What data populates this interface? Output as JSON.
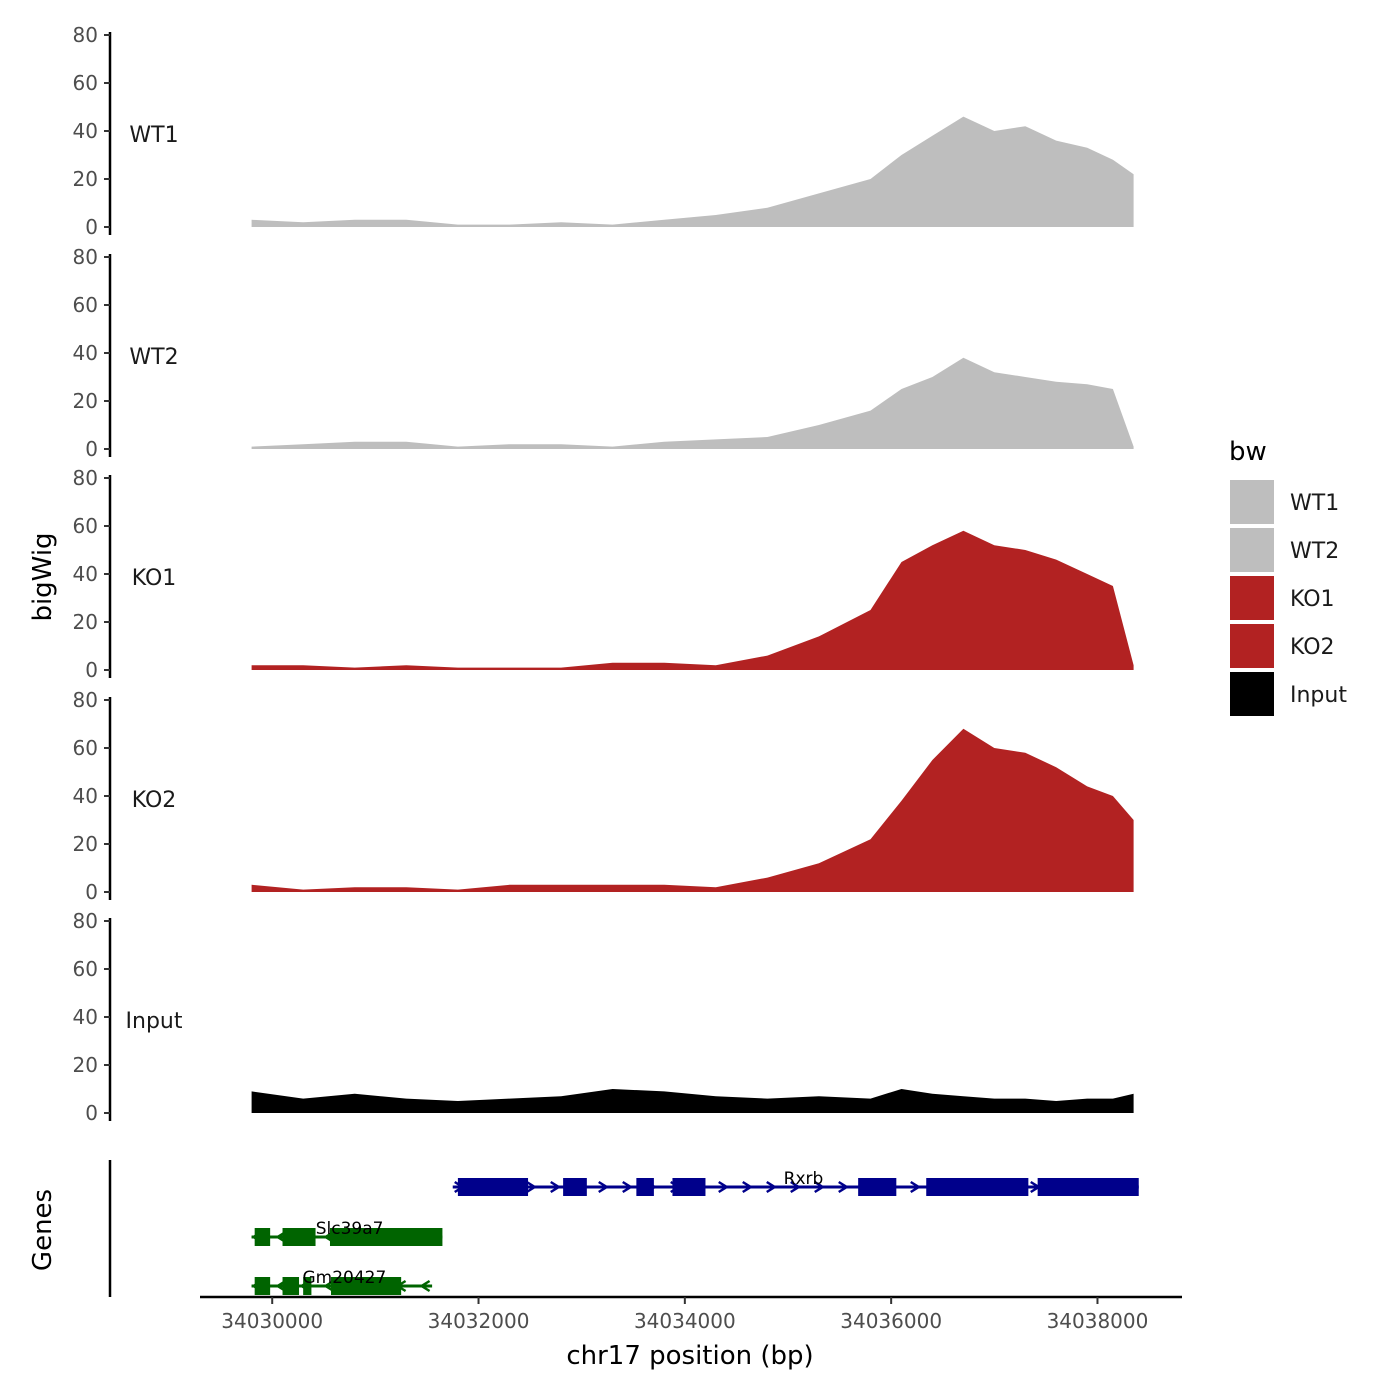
{
  "chart_data": {
    "type": "area",
    "region_chrom": "chr17",
    "xlim": [
      34029300,
      34038800
    ],
    "x_ticks": [
      34030000,
      34032000,
      34034000,
      34036000,
      34038000
    ],
    "x_tick_labels": [
      "34030000",
      "34032000",
      "34034000",
      "34036000",
      "34038000"
    ],
    "xlabel": "chr17 position (bp)",
    "ylabel": "bigWig",
    "ylim": [
      0,
      80
    ],
    "y_ticks": [
      0,
      20,
      40,
      60,
      80
    ],
    "y_tick_labels": [
      "0",
      "20",
      "40",
      "60",
      "80"
    ],
    "genes_panel_label": "Genes",
    "legend": {
      "title": "bw",
      "placement": "right",
      "entries": [
        {
          "label": "WT1",
          "color": "#bebebe"
        },
        {
          "label": "WT2",
          "color": "#bebebe"
        },
        {
          "label": "KO1",
          "color": "#b22222"
        },
        {
          "label": "KO2",
          "color": "#b22222"
        },
        {
          "label": "Input",
          "color": "#000000"
        }
      ]
    },
    "x": [
      34029800,
      34030300,
      34030800,
      34031300,
      34031800,
      34032300,
      34032800,
      34033300,
      34033800,
      34034300,
      34034800,
      34035300,
      34035800,
      34036100,
      34036400,
      34036700,
      34037000,
      34037300,
      34037600,
      34037900,
      34038150,
      34038350
    ],
    "series": [
      {
        "name": "WT1",
        "color": "#bebebe",
        "values": [
          3,
          2,
          3,
          3,
          1,
          1,
          2,
          1,
          3,
          5,
          8,
          14,
          20,
          30,
          38,
          46,
          40,
          42,
          36,
          33,
          28,
          22
        ]
      },
      {
        "name": "WT2",
        "color": "#bebebe",
        "values": [
          1,
          2,
          3,
          3,
          1,
          2,
          2,
          1,
          3,
          4,
          5,
          10,
          16,
          25,
          30,
          38,
          32,
          30,
          28,
          27,
          25,
          1
        ]
      },
      {
        "name": "KO1",
        "color": "#b22222",
        "values": [
          2,
          2,
          1,
          2,
          1,
          1,
          1,
          3,
          3,
          2,
          6,
          14,
          25,
          45,
          52,
          58,
          52,
          50,
          46,
          40,
          35,
          2
        ]
      },
      {
        "name": "KO2",
        "color": "#b22222",
        "values": [
          3,
          1,
          2,
          2,
          1,
          3,
          3,
          3,
          3,
          2,
          6,
          12,
          22,
          38,
          55,
          68,
          60,
          58,
          52,
          44,
          40,
          30
        ]
      },
      {
        "name": "Input",
        "color": "#000000",
        "values": [
          9,
          6,
          8,
          6,
          5,
          6,
          7,
          10,
          9,
          7,
          6,
          7,
          6,
          10,
          8,
          7,
          6,
          6,
          5,
          6,
          6,
          8
        ]
      }
    ],
    "genes": [
      {
        "name": "Rxrb",
        "strand": "+",
        "color": "#00008b",
        "row": 0,
        "start": 34031750,
        "end": 34038400,
        "label_pos": 34035150,
        "exons": [
          [
            34031800,
            34032480
          ],
          [
            34032820,
            34033050
          ],
          [
            34033530,
            34033700
          ],
          [
            34033880,
            34034200
          ],
          [
            34035680,
            34036050
          ],
          [
            34036340,
            34037330
          ],
          [
            34037420,
            34038400
          ]
        ]
      },
      {
        "name": "Slc39a7",
        "strand": "-",
        "color": "#006400",
        "row": 1,
        "start": 34029800,
        "end": 34031650,
        "label_pos": 34030750,
        "exons": [
          [
            34029830,
            34029980
          ],
          [
            34030100,
            34030420
          ],
          [
            34030560,
            34031650
          ]
        ]
      },
      {
        "name": "Gm20427",
        "strand": "-",
        "color": "#006400",
        "row": 2,
        "start": 34029800,
        "end": 34031550,
        "label_pos": 34030700,
        "exons": [
          [
            34029830,
            34029980
          ],
          [
            34030100,
            34030260
          ],
          [
            34030300,
            34030380
          ],
          [
            34030570,
            34031250
          ]
        ]
      }
    ]
  }
}
